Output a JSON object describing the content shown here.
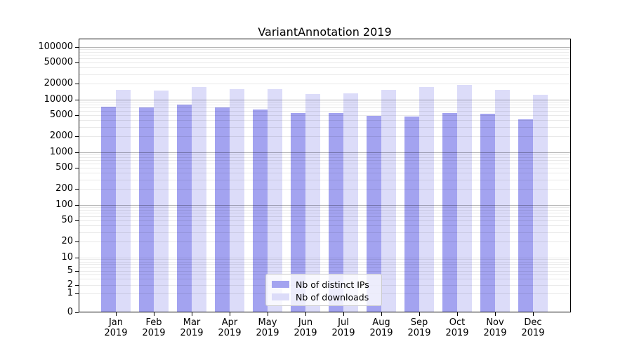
{
  "chart_data": {
    "type": "bar",
    "title": "VariantAnnotation 2019",
    "categories": [
      "Jan 2019",
      "Feb 2019",
      "Mar 2019",
      "Apr 2019",
      "May 2019",
      "Jun 2019",
      "Jul 2019",
      "Aug 2019",
      "Sep 2019",
      "Oct 2019",
      "Nov 2019",
      "Dec 2019"
    ],
    "series": [
      {
        "name": "Nb of distinct IPs",
        "color": "#a3a3f0",
        "values": [
          7200,
          7000,
          8000,
          7100,
          6500,
          5500,
          5500,
          4900,
          4700,
          5500,
          5400,
          4200
        ]
      },
      {
        "name": "Nb of downloads",
        "color": "#dcdcf9",
        "values": [
          15000,
          14700,
          17100,
          15800,
          15700,
          12500,
          12900,
          15000,
          17100,
          18800,
          15100,
          12300
        ]
      }
    ],
    "yscale": "symlog",
    "y_ticks": [
      0,
      1,
      2,
      5,
      10,
      20,
      50,
      100,
      200,
      500,
      1000,
      2000,
      5000,
      10000,
      20000,
      50000,
      100000
    ],
    "ylim": [
      0,
      150000
    ],
    "xlabel": "",
    "ylabel": "",
    "grid": true,
    "grid_major_color": "#b3b3b3",
    "grid_minor_color": "#e9e9e9",
    "axis_color": "#000000",
    "legend_position": "lower center"
  }
}
